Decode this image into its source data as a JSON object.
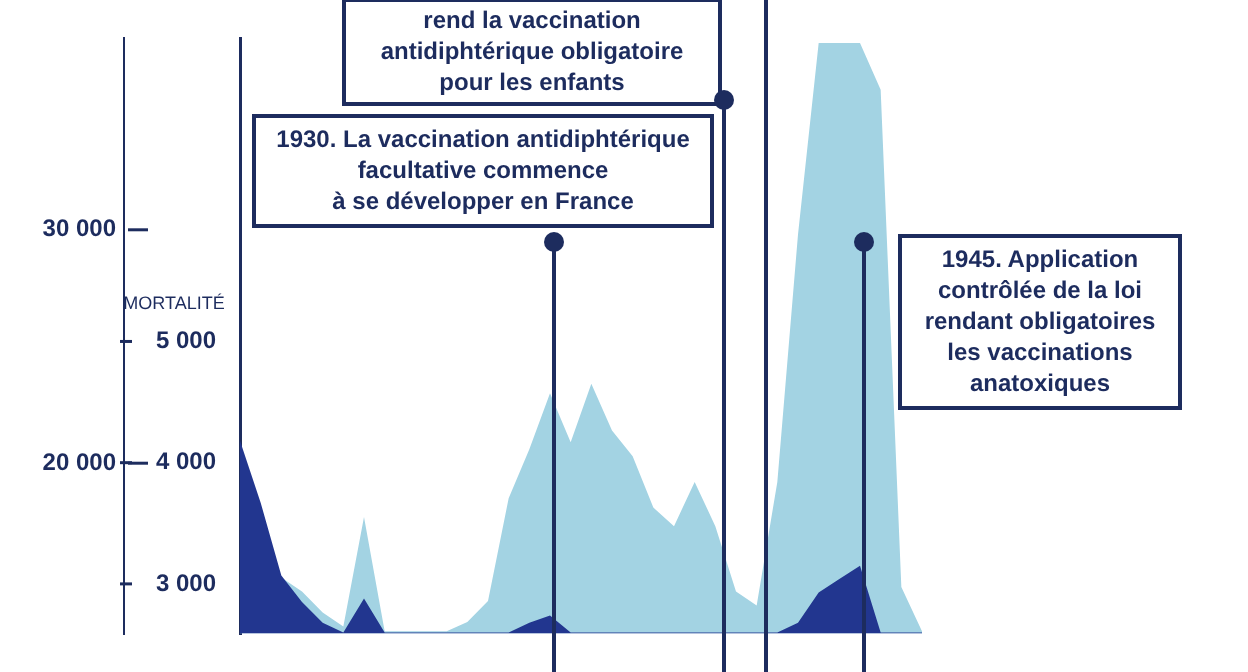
{
  "chart_data": {
    "type": "area",
    "categories": [
      null,
      null,
      null,
      null,
      null,
      null,
      null,
      null,
      null,
      null,
      null,
      null,
      null,
      null,
      null,
      null,
      null,
      null,
      null,
      null,
      null,
      null,
      null,
      null,
      null,
      null,
      null,
      null,
      null,
      null,
      null,
      null,
      null,
      null
    ],
    "series": [
      {
        "color": "#a3d3e3",
        "values": [
          18500,
          null,
          15100,
          14500,
          13600,
          13000,
          17700,
          12800,
          12800,
          12800,
          12800,
          13200,
          14100,
          18500,
          20600,
          23000,
          20900,
          23400,
          21400,
          20300,
          18100,
          17300,
          19200,
          17300,
          14500,
          13900,
          19200,
          29800,
          38000,
          38000,
          38000,
          36000,
          14700,
          12800
        ]
      },
      {
        "color": "#22368f",
        "axis": "y2",
        "values": [
          4180,
          3670,
          3070,
          2850,
          2680,
          2600,
          2880,
          2600,
          2600,
          2600,
          2600,
          2600,
          2600,
          2600,
          2680,
          2740,
          2600,
          2600,
          2600,
          2600,
          2600,
          2600,
          2600,
          2600,
          2600,
          2600,
          2600,
          2680,
          2930,
          3040,
          3150,
          2600,
          2600,
          2600
        ]
      }
    ],
    "ylim": [
      12700,
      38200
    ],
    "yticks": [
      {
        "value": 20000,
        "label": "20 000"
      },
      {
        "value": 30000,
        "label": "30 000"
      }
    ],
    "y2lim": [
      2590,
      7500
    ],
    "y2ticks": [
      {
        "value": 3000,
        "label": "3 000"
      },
      {
        "value": 4000,
        "label": "4 000"
      },
      {
        "value": 5000,
        "label": "5 000"
      }
    ],
    "y2label": "MORTALITÉ",
    "annotations": [
      "rend la vaccination\nantidiphtérique obligatoire\npour les enfants",
      "1930. La vaccination antidiphtérique\nfacultative commence\nà se développer en France",
      "1945. Application\ncontrôlée de la loi\nrendant obligatoires\nles vaccinations\nanatoxiques"
    ],
    "grid": false,
    "legend": false,
    "tick_labels": "y"
  }
}
